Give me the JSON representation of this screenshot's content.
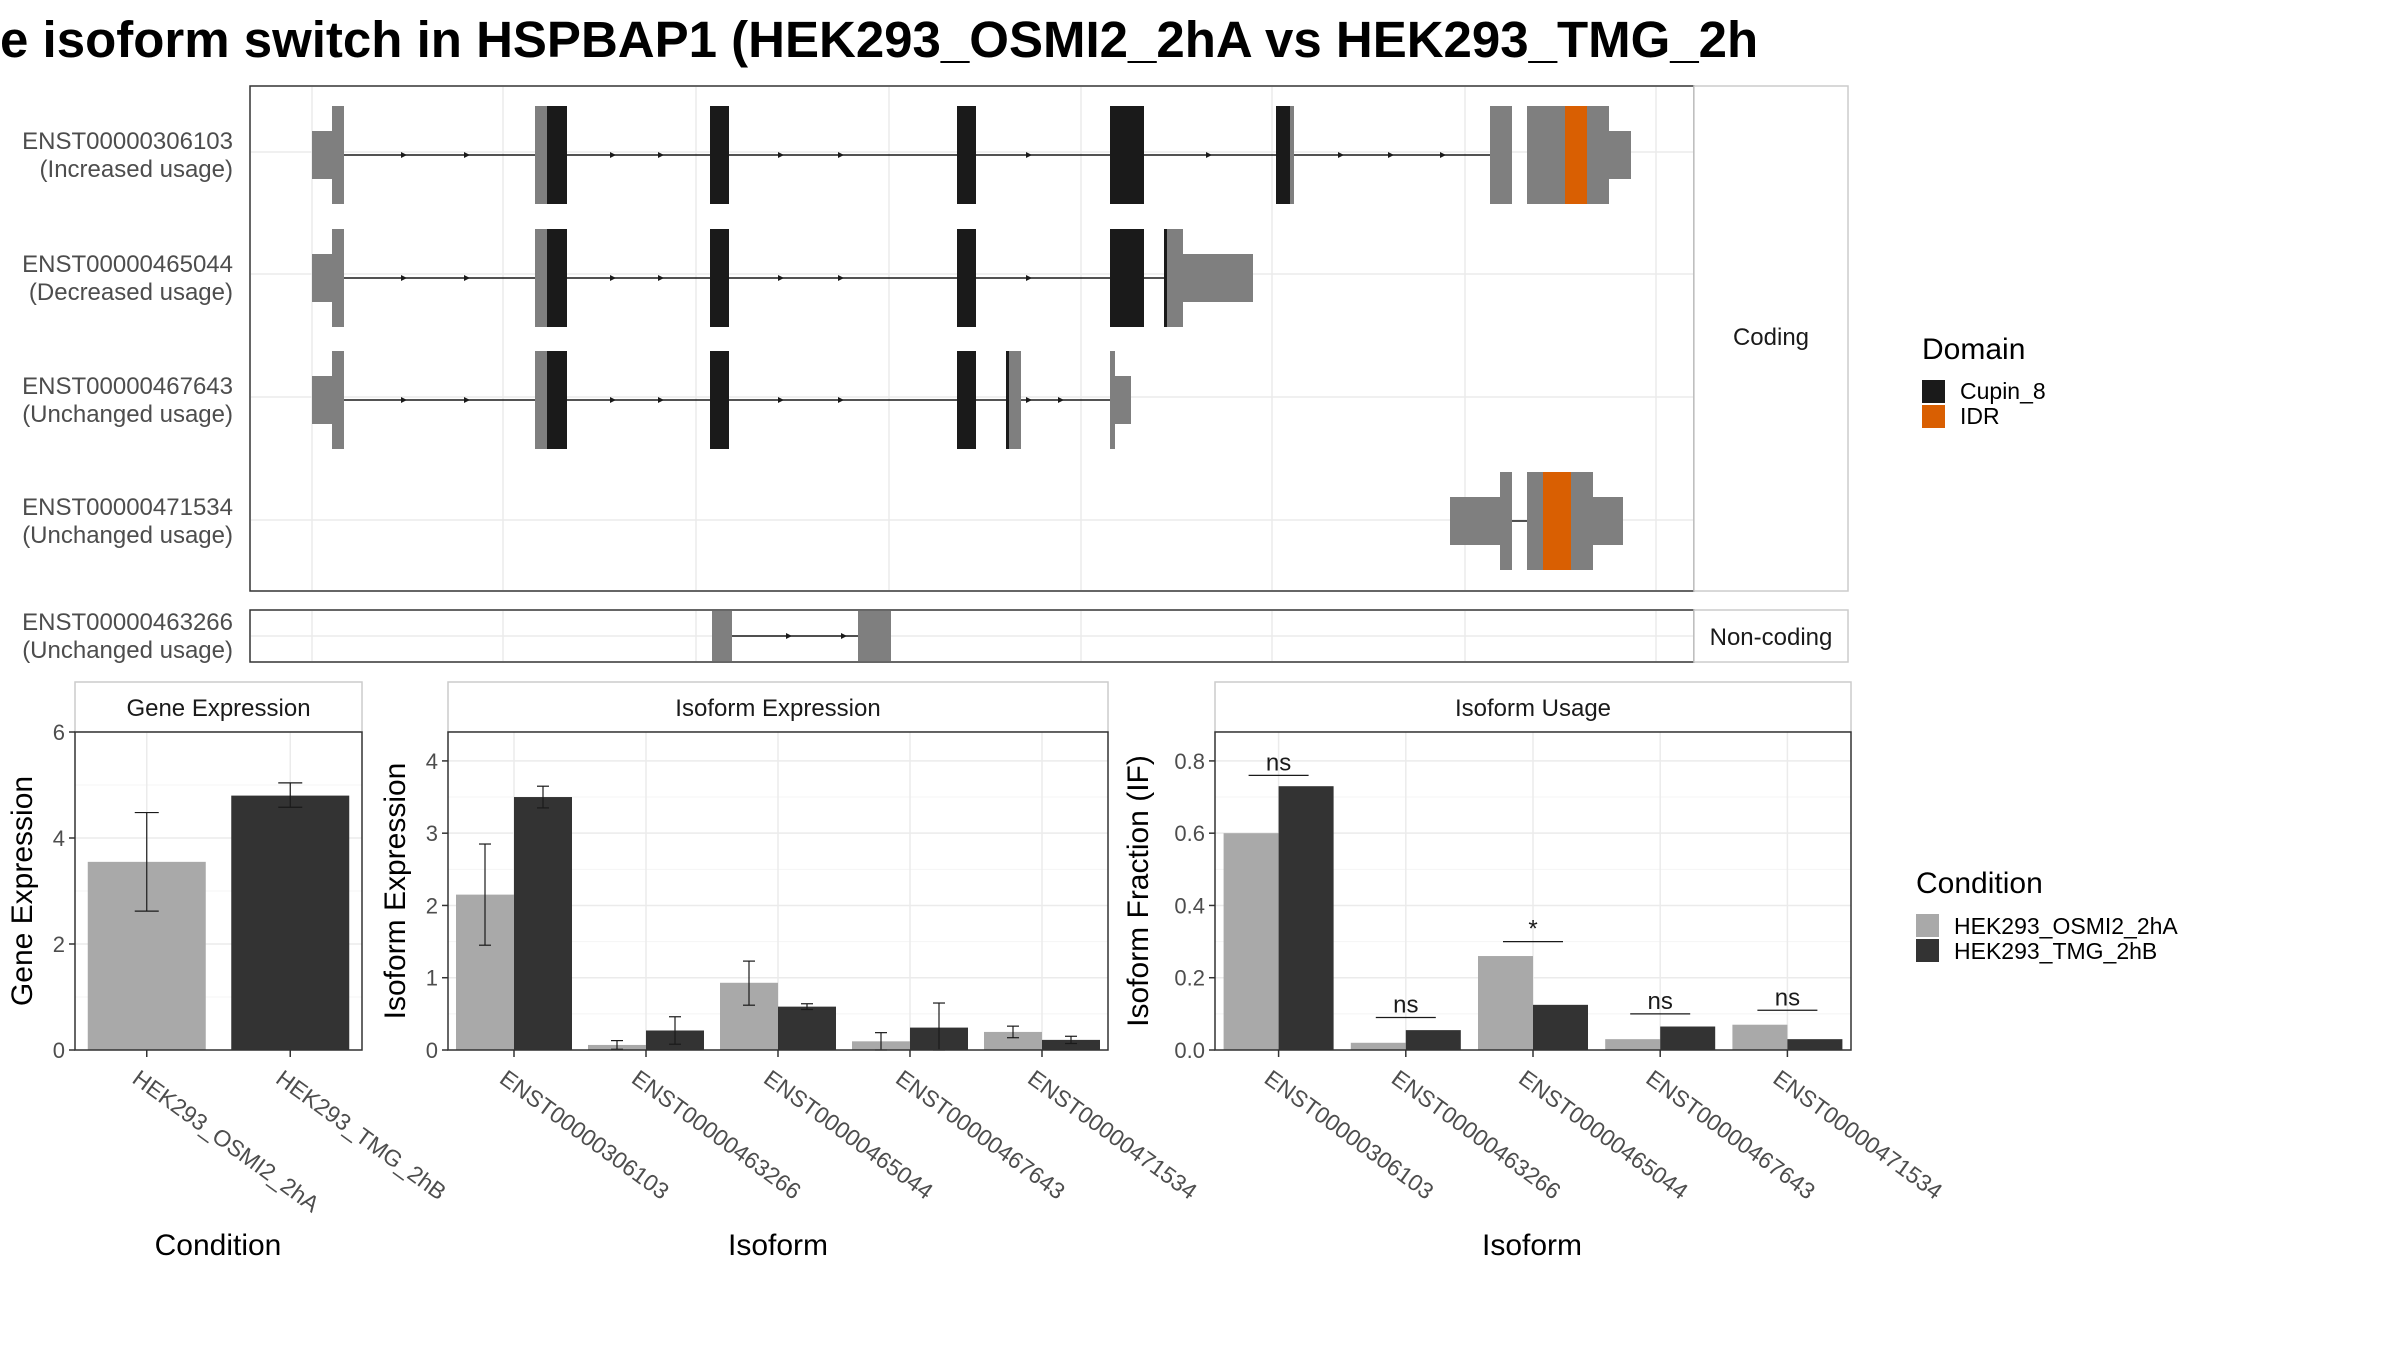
{
  "title": "e isoform switch in HSPBAP1 (HEK293_OSMI2_2hA vs HEK293_TMG_2h",
  "structure": {
    "coding_label": "Coding",
    "noncoding_label": "Non-coding",
    "isoforms": [
      {
        "id": "ENST00000306103",
        "usage": "(Increased usage)"
      },
      {
        "id": "ENST00000465044",
        "usage": "(Decreased usage)"
      },
      {
        "id": "ENST00000467643",
        "usage": "(Unchanged usage)"
      },
      {
        "id": "ENST00000471534",
        "usage": "(Unchanged usage)"
      },
      {
        "id": "ENST00000463266",
        "usage": "(Unchanged usage)"
      }
    ]
  },
  "legend_domain": {
    "title": "Domain",
    "items": [
      {
        "label": "Cupin_8",
        "color": "#1a1a1a"
      },
      {
        "label": "IDR",
        "color": "#d95f02"
      }
    ]
  },
  "legend_condition": {
    "title": "Condition",
    "items": [
      {
        "label": "HEK293_OSMI2_2hA",
        "color": "#a9a9a9"
      },
      {
        "label": "HEK293_TMG_2hB",
        "color": "#333333"
      }
    ]
  },
  "chart_data": [
    {
      "type": "bar",
      "title": "Gene Expression",
      "xlabel": "Condition",
      "ylabel": "Gene Expression",
      "ylim": [
        0,
        6
      ],
      "yticks": [
        0,
        2,
        4,
        6
      ],
      "categories": [
        "HEK293_OSMI2_2hA",
        "HEK293_TMG_2hB"
      ],
      "values": [
        3.55,
        4.8
      ],
      "errors": [
        [
          2.62,
          4.48
        ],
        [
          4.58,
          5.04
        ]
      ]
    },
    {
      "type": "bar",
      "title": "Isoform Expression",
      "xlabel": "Isoform",
      "ylabel": "Isoform Expression",
      "ylim": [
        0,
        4.4
      ],
      "yticks": [
        0,
        1,
        2,
        3,
        4
      ],
      "categories": [
        "ENST00000306103",
        "ENST00000463266",
        "ENST00000465044",
        "ENST00000467643",
        "ENST00000471534"
      ],
      "series": [
        {
          "name": "HEK293_OSMI2_2hA",
          "values": [
            2.15,
            0.07,
            0.93,
            0.12,
            0.25
          ],
          "errors": [
            [
              1.45,
              2.85
            ],
            [
              0.01,
              0.13
            ],
            [
              0.62,
              1.23
            ],
            [
              0.0,
              0.24
            ],
            [
              0.17,
              0.33
            ]
          ]
        },
        {
          "name": "HEK293_TMG_2hB",
          "values": [
            3.5,
            0.27,
            0.6,
            0.31,
            0.14
          ],
          "errors": [
            [
              3.35,
              3.65
            ],
            [
              0.08,
              0.46
            ],
            [
              0.56,
              0.64
            ],
            [
              0.0,
              0.65
            ],
            [
              0.09,
              0.19
            ]
          ]
        }
      ]
    },
    {
      "type": "bar",
      "title": "Isoform Usage",
      "xlabel": "Isoform",
      "ylabel": "Isoform Fraction (IF)",
      "ylim": [
        0,
        0.88
      ],
      "yticks": [
        "0.0",
        "0.2",
        "0.4",
        "0.6",
        "0.8"
      ],
      "categories": [
        "ENST00000306103",
        "ENST00000463266",
        "ENST00000465044",
        "ENST00000467643",
        "ENST00000471534"
      ],
      "series": [
        {
          "name": "HEK293_OSMI2_2hA",
          "values": [
            0.6,
            0.02,
            0.26,
            0.03,
            0.07
          ]
        },
        {
          "name": "HEK293_TMG_2hB",
          "values": [
            0.73,
            0.055,
            0.125,
            0.065,
            0.03
          ]
        }
      ],
      "significance": [
        "ns",
        "ns",
        "*",
        "ns",
        "ns"
      ],
      "sig_y": [
        0.76,
        0.09,
        0.3,
        0.1,
        0.11
      ]
    }
  ]
}
